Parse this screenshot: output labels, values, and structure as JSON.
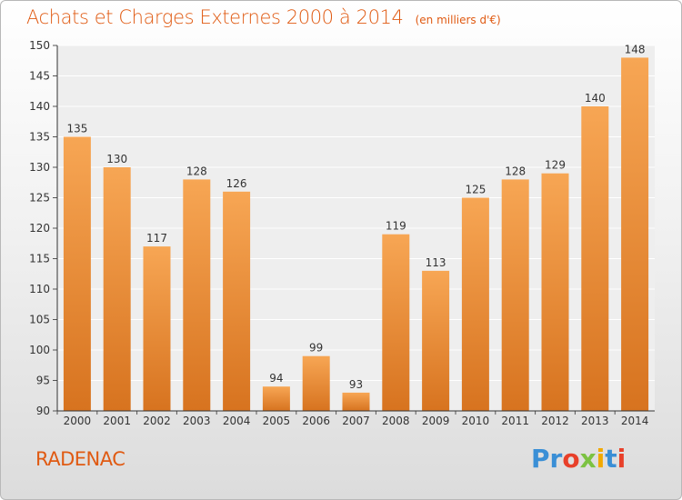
{
  "header": {
    "title": "Achats et Charges Externes 2000 à 2014",
    "unit": "(en milliers d'€)"
  },
  "footer": {
    "town": "RADENAC",
    "logo_letters": [
      "P",
      "r",
      "o",
      "x",
      "i",
      "t",
      "i"
    ],
    "logo_colors": [
      "#3a8fd6",
      "#3a8fd6",
      "#e8402a",
      "#7cc242",
      "#f2a900",
      "#3a8fd6",
      "#e8402a"
    ]
  },
  "colors": {
    "bar_light": "#f7a654",
    "bar_dark": "#d7731f",
    "accent": "#e05a12",
    "plot_bg": "#eeeeee",
    "grid": "#ffffff"
  },
  "chart_data": {
    "type": "bar",
    "title": "Achats et Charges Externes 2000 à 2014",
    "subtitle": "(en milliers d'€)",
    "xlabel": "",
    "ylabel": "",
    "categories": [
      "2000",
      "2001",
      "2002",
      "2003",
      "2004",
      "2005",
      "2006",
      "2007",
      "2008",
      "2009",
      "2010",
      "2011",
      "2012",
      "2013",
      "2014"
    ],
    "values": [
      135,
      130,
      117,
      128,
      126,
      94,
      99,
      93,
      119,
      113,
      125,
      128,
      129,
      140,
      148
    ],
    "ylim": [
      90,
      150
    ],
    "yticks": [
      90,
      95,
      100,
      105,
      110,
      115,
      120,
      125,
      130,
      135,
      140,
      145,
      150
    ],
    "grid": true,
    "legend": "none"
  }
}
